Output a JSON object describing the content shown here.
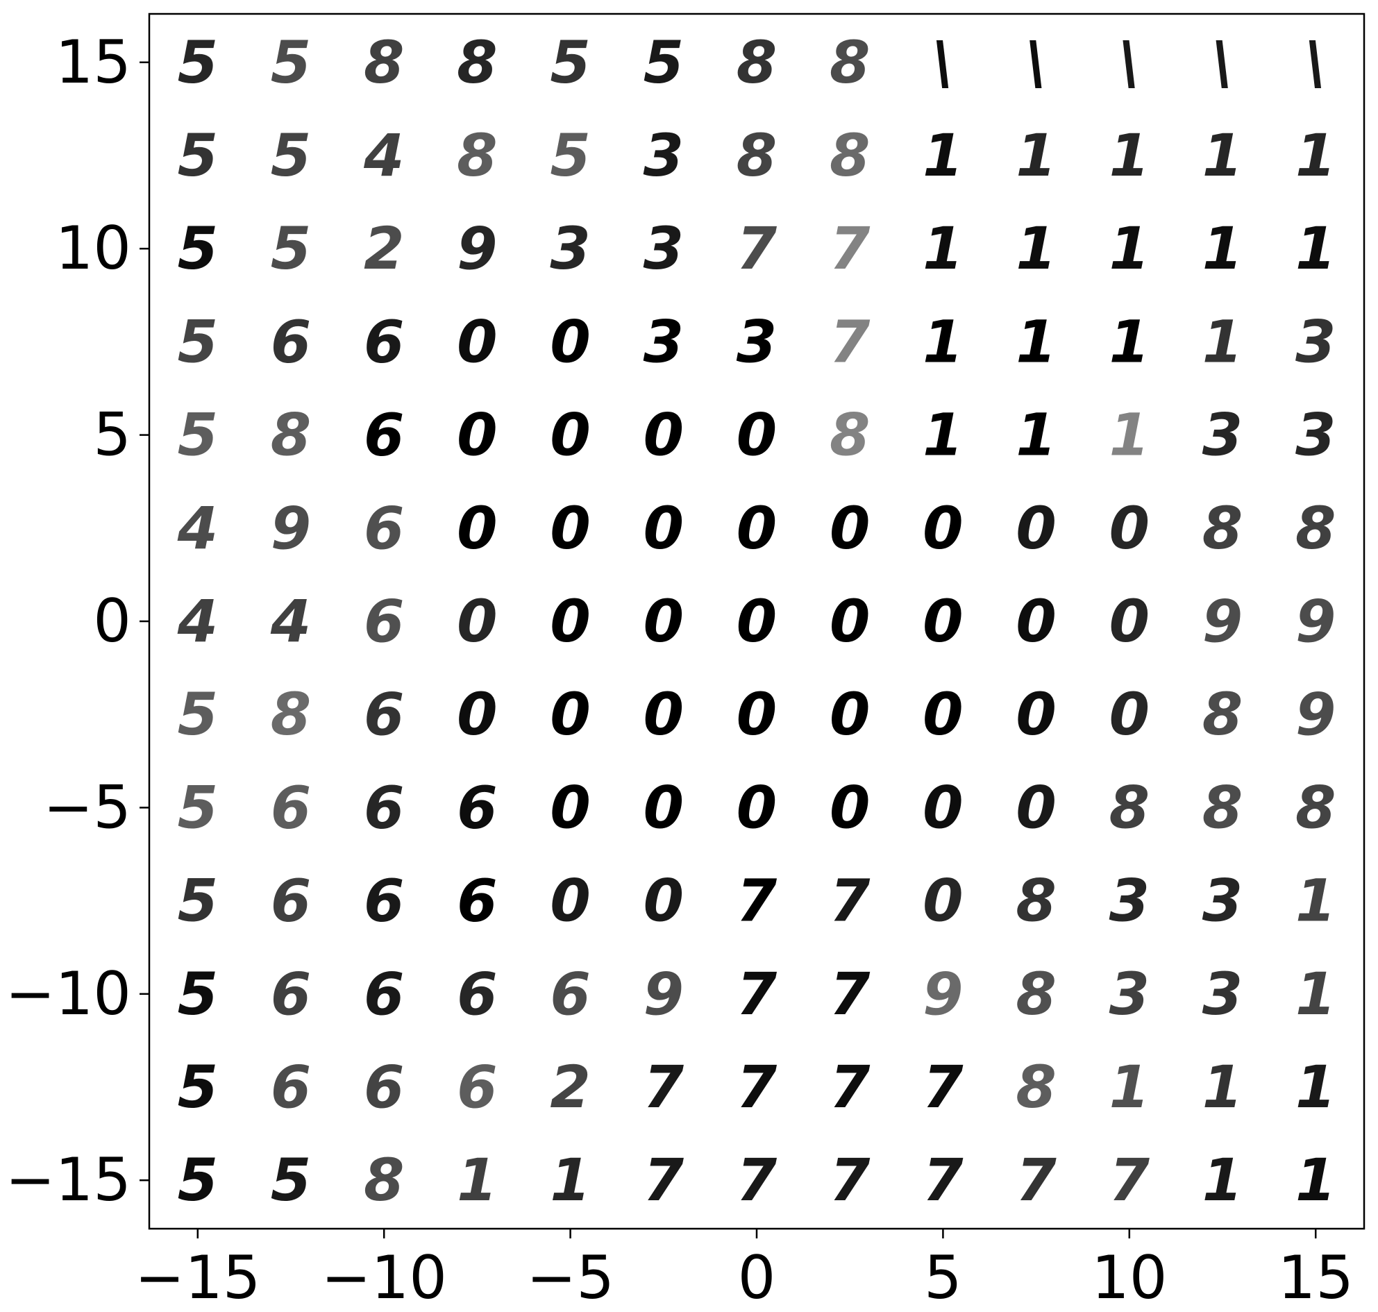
{
  "chart_data": {
    "type": "heatmap",
    "title": "",
    "xlabel": "",
    "ylabel": "",
    "xlim": [
      -16.3,
      16.3
    ],
    "ylim": [
      -16.3,
      16.3
    ],
    "grid": false,
    "x_ticks": [
      -15,
      -10,
      -5,
      0,
      5,
      10,
      15
    ],
    "y_ticks": [
      -15,
      -10,
      -5,
      0,
      5,
      10,
      15
    ],
    "x_tick_labels": [
      "−15",
      "−10",
      "−5",
      "0",
      "5",
      "10",
      "15"
    ],
    "y_tick_labels": [
      "−15",
      "−10",
      "−5",
      "0",
      "5",
      "10",
      "15"
    ],
    "grid_x": [
      -15,
      -12.5,
      -10,
      -7.5,
      -5,
      -2.5,
      0,
      2.5,
      5,
      7.5,
      10,
      12.5,
      15
    ],
    "grid_y": [
      15,
      12.5,
      10,
      7.5,
      5,
      2.5,
      0,
      -2.5,
      -5,
      -7.5,
      -10,
      -12.5,
      -15
    ],
    "digits": [
      [
        "5",
        "5",
        "8",
        "8",
        "5",
        "5",
        "8",
        "8",
        "\\",
        "\\",
        "\\",
        "\\",
        "\\"
      ],
      [
        "5",
        "5",
        "4",
        "8",
        "5",
        "3",
        "8",
        "8",
        "1",
        "1",
        "1",
        "1",
        "1"
      ],
      [
        "5",
        "5",
        "2",
        "9",
        "3",
        "3",
        "7",
        "7",
        "1",
        "1",
        "1",
        "1",
        "1"
      ],
      [
        "5",
        "6",
        "6",
        "0",
        "0",
        "3",
        "3",
        "7",
        "1",
        "1",
        "1",
        "1",
        "3"
      ],
      [
        "5",
        "8",
        "6",
        "0",
        "0",
        "0",
        "0",
        "8",
        "1",
        "1",
        "1",
        "3",
        "3"
      ],
      [
        "4",
        "9",
        "6",
        "0",
        "0",
        "0",
        "0",
        "0",
        "0",
        "0",
        "0",
        "8",
        "8"
      ],
      [
        "4",
        "4",
        "6",
        "0",
        "0",
        "0",
        "0",
        "0",
        "0",
        "0",
        "0",
        "9",
        "9"
      ],
      [
        "5",
        "8",
        "6",
        "0",
        "0",
        "0",
        "0",
        "0",
        "0",
        "0",
        "0",
        "8",
        "9"
      ],
      [
        "5",
        "6",
        "6",
        "6",
        "0",
        "0",
        "0",
        "0",
        "0",
        "0",
        "8",
        "8",
        "8"
      ],
      [
        "5",
        "6",
        "6",
        "6",
        "0",
        "0",
        "7",
        "7",
        "0",
        "8",
        "3",
        "3",
        "1"
      ],
      [
        "5",
        "6",
        "6",
        "6",
        "6",
        "9",
        "7",
        "7",
        "9",
        "8",
        "3",
        "3",
        "1"
      ],
      [
        "5",
        "6",
        "6",
        "6",
        "2",
        "7",
        "7",
        "7",
        "7",
        "8",
        "1",
        "1",
        "1"
      ],
      [
        "5",
        "5",
        "8",
        "1",
        "1",
        "7",
        "7",
        "7",
        "7",
        "7",
        "7",
        "1",
        "1"
      ]
    ],
    "intensity": [
      [
        0.85,
        0.7,
        0.75,
        0.85,
        0.8,
        0.9,
        0.8,
        0.7,
        0.95,
        0.95,
        0.9,
        0.9,
        0.9
      ],
      [
        0.8,
        0.65,
        0.75,
        0.55,
        0.55,
        0.9,
        0.65,
        0.5,
        0.95,
        0.85,
        0.85,
        0.85,
        0.85
      ],
      [
        0.95,
        0.7,
        0.7,
        0.85,
        0.85,
        0.9,
        0.7,
        0.4,
        0.95,
        0.95,
        0.95,
        0.95,
        0.95
      ],
      [
        0.65,
        0.8,
        0.9,
        0.95,
        1.0,
        1.0,
        1.0,
        0.4,
        1.0,
        1.0,
        1.0,
        0.8,
        0.8
      ],
      [
        0.55,
        0.55,
        1.0,
        1.0,
        1.0,
        1.0,
        1.0,
        0.4,
        1.0,
        1.0,
        0.4,
        0.85,
        0.85
      ],
      [
        0.7,
        0.7,
        0.6,
        1.0,
        1.0,
        1.0,
        1.0,
        1.0,
        1.0,
        0.9,
        0.85,
        0.75,
        0.75
      ],
      [
        0.75,
        0.75,
        0.6,
        0.85,
        1.0,
        1.0,
        1.0,
        1.0,
        1.0,
        0.95,
        0.85,
        0.7,
        0.7
      ],
      [
        0.55,
        0.5,
        0.8,
        0.95,
        1.0,
        1.0,
        1.0,
        1.0,
        1.0,
        0.95,
        0.85,
        0.7,
        0.7
      ],
      [
        0.55,
        0.55,
        0.85,
        0.95,
        1.0,
        1.0,
        1.0,
        1.0,
        0.95,
        0.9,
        0.75,
        0.7,
        0.65
      ],
      [
        0.8,
        0.75,
        0.9,
        1.0,
        0.9,
        0.9,
        1.0,
        0.9,
        0.85,
        0.8,
        0.85,
        0.85,
        0.65
      ],
      [
        0.95,
        0.75,
        0.9,
        0.85,
        0.7,
        0.7,
        0.95,
        0.95,
        0.5,
        0.6,
        0.75,
        0.8,
        0.65
      ],
      [
        0.95,
        0.7,
        0.65,
        0.55,
        0.65,
        0.9,
        0.95,
        0.95,
        0.95,
        0.55,
        0.6,
        0.8,
        0.9
      ],
      [
        0.95,
        0.9,
        0.7,
        0.75,
        0.85,
        0.9,
        0.9,
        0.9,
        0.9,
        0.8,
        0.75,
        0.9,
        0.95
      ]
    ]
  }
}
